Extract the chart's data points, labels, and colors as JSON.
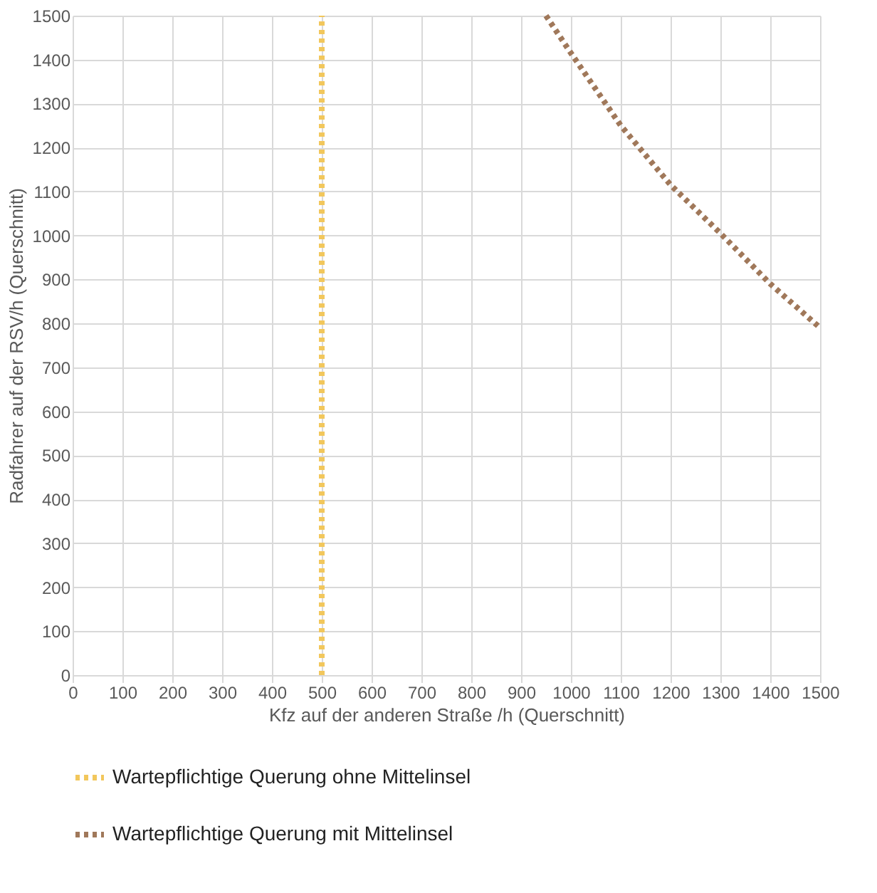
{
  "chart_data": {
    "type": "line",
    "xlabel": "Kfz auf der anderen Straße /h (Querschnitt)",
    "ylabel": "Radfahrer auf der RSV/h (Querschnitt)",
    "xlim": [
      0,
      1500
    ],
    "xticks": [
      0,
      100,
      200,
      300,
      400,
      500,
      600,
      700,
      800,
      900,
      1000,
      1100,
      1200,
      1300,
      1400,
      1500
    ],
    "ylim": [
      0,
      1500
    ],
    "yticks": [
      0,
      100,
      200,
      300,
      400,
      500,
      600,
      700,
      800,
      900,
      1000,
      1100,
      1200,
      1300,
      1400,
      1500
    ],
    "grid": true,
    "legend": "bottom",
    "line_style": "dotted",
    "marker": "none",
    "series": [
      {
        "name": "Wartepflichtige Querung ohne Mittelinsel",
        "color": "#f2c75c",
        "x": [
          500,
          500
        ],
        "values": [
          0,
          1500
        ]
      },
      {
        "name": "Wartepflichtige Querung mit Mittelinsel",
        "color": "#a0785a",
        "x": [
          950,
          1000,
          1100,
          1200,
          1300,
          1400,
          1500
        ],
        "values": [
          1500,
          1415,
          1250,
          1115,
          1005,
          890,
          790
        ]
      }
    ]
  }
}
